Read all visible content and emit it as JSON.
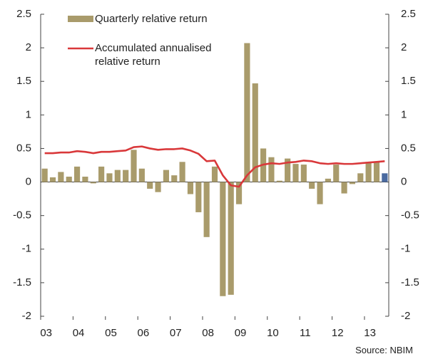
{
  "chart_data": {
    "type": "bar",
    "categories": [
      "03",
      null,
      null,
      null,
      "04",
      null,
      null,
      null,
      "05",
      null,
      null,
      null,
      "06",
      null,
      null,
      null,
      "07",
      null,
      null,
      null,
      "08",
      null,
      null,
      null,
      "09",
      null,
      null,
      null,
      "10",
      null,
      null,
      null,
      "11",
      null,
      null,
      null,
      "12",
      null,
      null,
      null,
      "13",
      null,
      null
    ],
    "series": [
      {
        "name": "Quarterly relative return",
        "type": "bar",
        "color": "#a99b6b",
        "colors": [
          "#a99b6b",
          "#a99b6b",
          "#a99b6b",
          "#a99b6b",
          "#a99b6b",
          "#a99b6b",
          "#a99b6b",
          "#a99b6b",
          "#a99b6b",
          "#a99b6b",
          "#a99b6b",
          "#a99b6b",
          "#a99b6b",
          "#a99b6b",
          "#a99b6b",
          "#a99b6b",
          "#a99b6b",
          "#a99b6b",
          "#a99b6b",
          "#a99b6b",
          "#a99b6b",
          "#a99b6b",
          "#a99b6b",
          "#a99b6b",
          "#a99b6b",
          "#a99b6b",
          "#a99b6b",
          "#a99b6b",
          "#a99b6b",
          "#a99b6b",
          "#a99b6b",
          "#a99b6b",
          "#a99b6b",
          "#a99b6b",
          "#a99b6b",
          "#a99b6b",
          "#a99b6b",
          "#a99b6b",
          "#a99b6b",
          "#a99b6b",
          "#a99b6b",
          "#a99b6b",
          "#4a6aa0"
        ],
        "values": [
          0.2,
          0.07,
          0.15,
          0.08,
          0.23,
          0.08,
          -0.02,
          0.23,
          0.13,
          0.18,
          0.18,
          0.48,
          0.2,
          -0.1,
          -0.15,
          0.18,
          0.1,
          0.3,
          -0.18,
          -0.45,
          -0.82,
          0.23,
          -1.7,
          -1.68,
          -0.33,
          2.07,
          1.47,
          0.5,
          0.37,
          0.02,
          0.35,
          0.27,
          0.26,
          -0.1,
          -0.33,
          0.05,
          0.26,
          -0.17,
          -0.03,
          0.13,
          0.3,
          0.3,
          0.13
        ]
      },
      {
        "name": "Accumulated annualised relative return",
        "type": "line",
        "color": "#d9383a",
        "values": [
          0.43,
          0.43,
          0.44,
          0.44,
          0.46,
          0.45,
          0.43,
          0.45,
          0.45,
          0.46,
          0.47,
          0.52,
          0.53,
          0.5,
          0.48,
          0.49,
          0.49,
          0.5,
          0.47,
          0.42,
          0.31,
          0.32,
          0.1,
          -0.05,
          -0.07,
          0.1,
          0.22,
          0.26,
          0.28,
          0.27,
          0.29,
          0.3,
          0.32,
          0.31,
          0.28,
          0.27,
          0.28,
          0.27,
          0.27,
          0.28,
          0.29,
          0.3,
          0.31
        ]
      }
    ],
    "ylim": [
      -2,
      2.5
    ],
    "yticks": [
      -2,
      -1.5,
      -1,
      -0.5,
      0,
      0.5,
      1,
      1.5,
      2,
      2.5
    ],
    "y2lim": [
      -2,
      2.5
    ],
    "y2ticks": [
      -2,
      -1.5,
      -1,
      -0.5,
      0,
      0.5,
      1,
      1.5,
      2,
      2.5
    ],
    "grid": false,
    "source": "Source: NBIM"
  }
}
